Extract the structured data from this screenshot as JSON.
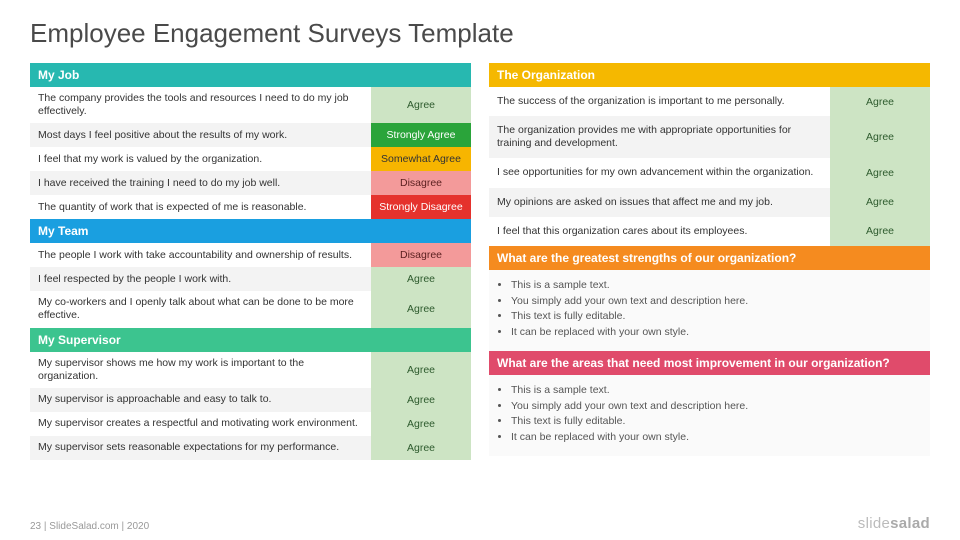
{
  "title": "Employee Engagement Surveys Template",
  "footer": {
    "page": "23",
    "sep1": " | ",
    "site": "SlideSalad.com",
    "sep2": " | ",
    "year": "2020"
  },
  "brand": {
    "a": "slide",
    "b": "salad"
  },
  "colors": {
    "row_alt_a": "#ffffff",
    "row_alt_b": "#f3f3f3",
    "bullets_bg": "#fafafa"
  },
  "answer_styles": {
    "agree": {
      "bg": "#cde4c4",
      "fg": "#2d5a2d"
    },
    "strongly_agree": {
      "bg": "#2aa43a",
      "fg": "#ffffff"
    },
    "somewhat_agree": {
      "bg": "#f7b500",
      "fg": "#333333"
    },
    "disagree": {
      "bg": "#f39a9a",
      "fg": "#5a1f1f"
    },
    "strongly_disagree": {
      "bg": "#e5322d",
      "fg": "#ffffff"
    }
  },
  "left": [
    {
      "header": "My Job",
      "header_bg": "#27b8b0",
      "rows": [
        {
          "q": "The company provides the tools and resources I need to do my job effectively.",
          "a": "Agree",
          "style": "agree"
        },
        {
          "q": "Most days I feel positive about the results of my work.",
          "a": "Strongly Agree",
          "style": "strongly_agree"
        },
        {
          "q": "I feel that my work is valued by the organization.",
          "a": "Somewhat Agree",
          "style": "somewhat_agree"
        },
        {
          "q": "I have received the training I need to do my job well.",
          "a": "Disagree",
          "style": "disagree"
        },
        {
          "q": "The quantity of work that is expected of me is reasonable.",
          "a": "Strongly Disagree",
          "style": "strongly_disagree"
        }
      ]
    },
    {
      "header": "My Team",
      "header_bg": "#1a9fe0",
      "rows": [
        {
          "q": "The people I work with take accountability and ownership of results.",
          "a": "Disagree",
          "style": "disagree"
        },
        {
          "q": "I feel respected by the people I work with.",
          "a": "Agree",
          "style": "agree"
        },
        {
          "q": "My co-workers and I openly talk about what can be done to be more effective.",
          "a": "Agree",
          "style": "agree"
        }
      ]
    },
    {
      "header": "My Supervisor",
      "header_bg": "#3cc48f",
      "rows": [
        {
          "q": "My supervisor shows me how my work is important to the organization.",
          "a": "Agree",
          "style": "agree"
        },
        {
          "q": "My supervisor is approachable and easy to talk to.",
          "a": "Agree",
          "style": "agree"
        },
        {
          "q": "My supervisor creates a respectful and motivating work environment.",
          "a": "Agree",
          "style": "agree"
        },
        {
          "q": "My supervisor sets reasonable expectations for my performance.",
          "a": "Agree",
          "style": "agree"
        }
      ]
    }
  ],
  "right_survey": {
    "header": "The Organization",
    "header_bg": "#f5b800",
    "rows": [
      {
        "q": "The success of the organization is important to me personally.",
        "a": "Agree",
        "style": "agree"
      },
      {
        "q": "The organization provides me with appropriate opportunities for training and development.",
        "a": "Agree",
        "style": "agree"
      },
      {
        "q": "I see opportunities for my own advancement within the organization.",
        "a": "Agree",
        "style": "agree"
      },
      {
        "q": "My opinions are asked on issues that affect me and my job.",
        "a": "Agree",
        "style": "agree"
      },
      {
        "q": "I feel that this organization cares about its employees.",
        "a": "Agree",
        "style": "agree"
      }
    ]
  },
  "right_text_sections": [
    {
      "header": "What are the greatest strengths of our organization?",
      "header_bg": "#f58b1f",
      "bullets": [
        "This is a sample text.",
        "You simply add your own text and description here.",
        "This text is fully editable.",
        "It can be replaced with your own style."
      ]
    },
    {
      "header": "What are the areas that need most improvement in our organization?",
      "header_bg": "#e04b6b",
      "bullets": [
        "This is a sample text.",
        "You simply add your own text and description here.",
        "This text is fully editable.",
        "It can be replaced with your own style."
      ]
    }
  ]
}
